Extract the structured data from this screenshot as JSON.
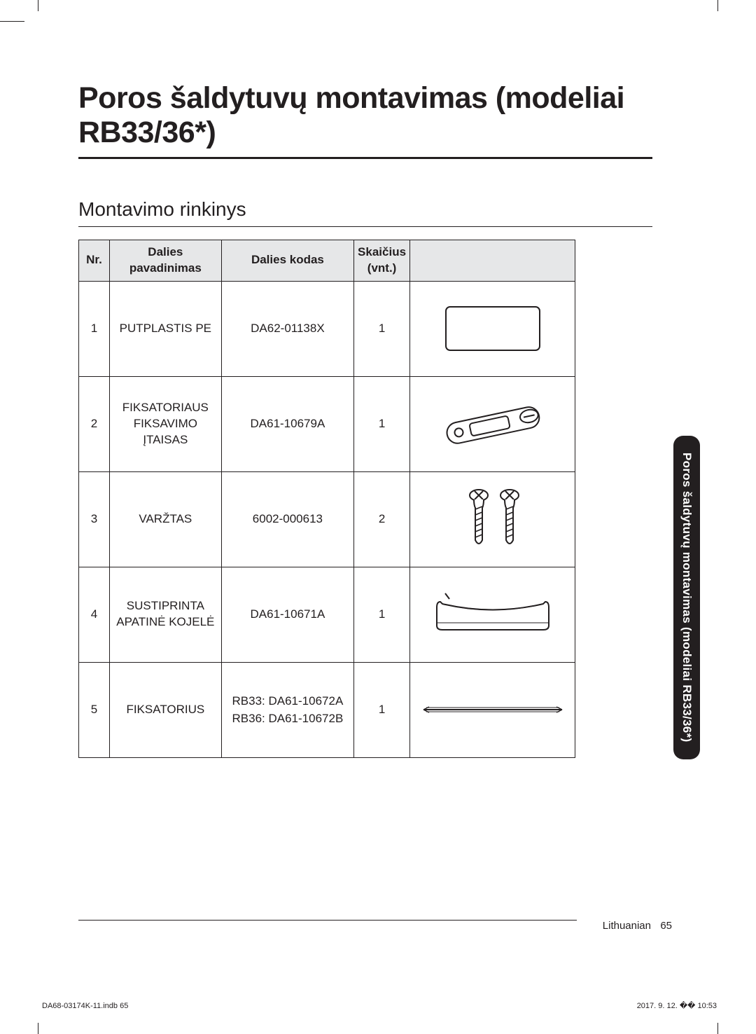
{
  "heading": "Poros šaldytuvų montavimas (modeliai RB33/36*)",
  "subheading": "Montavimo rinkinys",
  "table": {
    "headers": {
      "nr": "Nr.",
      "name": "Dalies pavadinimas",
      "code": "Dalies kodas",
      "qty": "Skaičius (vnt.)",
      "img": ""
    },
    "rows": [
      {
        "nr": "1",
        "name": "PUTPLASTIS PE",
        "code": "DA62-01138X",
        "qty": "1"
      },
      {
        "nr": "2",
        "name": "FIKSATORIAUS FIKSAVIMO ĮTAISAS",
        "code": "DA61-10679A",
        "qty": "1"
      },
      {
        "nr": "3",
        "name": "VARŽTAS",
        "code": "6002-000613",
        "qty": "2"
      },
      {
        "nr": "4",
        "name": "SUSTIPRINTA APATINĖ KOJELĖ",
        "code": "DA61-10671A",
        "qty": "1"
      },
      {
        "nr": "5",
        "name": "FIKSATORIUS",
        "code": "RB33: DA61-10672A\nRB36: DA61-10672B",
        "qty": "1"
      }
    ]
  },
  "sideTab": "Poros šaldytuvų montavimas (modeliai RB33/36*)",
  "footer": {
    "lang": "Lithuanian",
    "page": "65",
    "docLeft": "DA68-03174K-11.indb   65",
    "docRight": "2017. 9. 12.   �� 10:53"
  },
  "colors": {
    "text": "#231f20",
    "headerBg": "#e6e7e8",
    "tabBg": "#231f20",
    "tabText": "#ffffff",
    "pageBg": "#ffffff"
  }
}
